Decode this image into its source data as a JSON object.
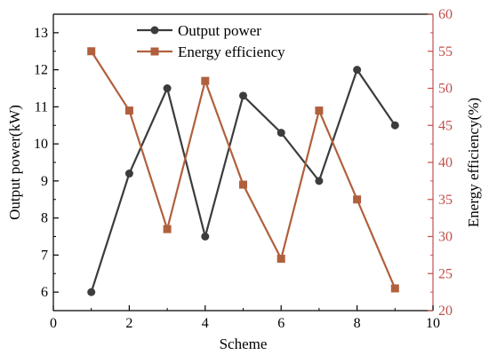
{
  "chart_data": {
    "type": "line",
    "xlabel": "Scheme",
    "xlim": [
      0,
      10
    ],
    "xticks": [
      0,
      2,
      4,
      6,
      8,
      10
    ],
    "left_axis": {
      "label": "Output power(kW)",
      "lim": [
        5.5,
        13.5
      ],
      "ticks": [
        6,
        7,
        8,
        9,
        10,
        11,
        12,
        13
      ],
      "color": "#000000"
    },
    "right_axis": {
      "label": "Energy efficiency(%)",
      "lim": [
        20,
        60
      ],
      "ticks": [
        20,
        25,
        30,
        35,
        40,
        45,
        50,
        55,
        60
      ],
      "color": "#c0504d"
    },
    "x": [
      1,
      2,
      3,
      4,
      5,
      6,
      7,
      8,
      9
    ],
    "series": [
      {
        "name": "Output power",
        "axis": "left",
        "marker": "circle",
        "color": "#3c3c3c",
        "values": [
          6.0,
          9.2,
          11.5,
          7.5,
          11.3,
          10.3,
          9.0,
          12.0,
          10.5
        ]
      },
      {
        "name": "Energy efficiency",
        "axis": "right",
        "marker": "square",
        "color": "#b0603d",
        "values": [
          55,
          47,
          31,
          51,
          37,
          27,
          47,
          35,
          23
        ]
      }
    ],
    "legend": "top-center",
    "grid": false
  }
}
